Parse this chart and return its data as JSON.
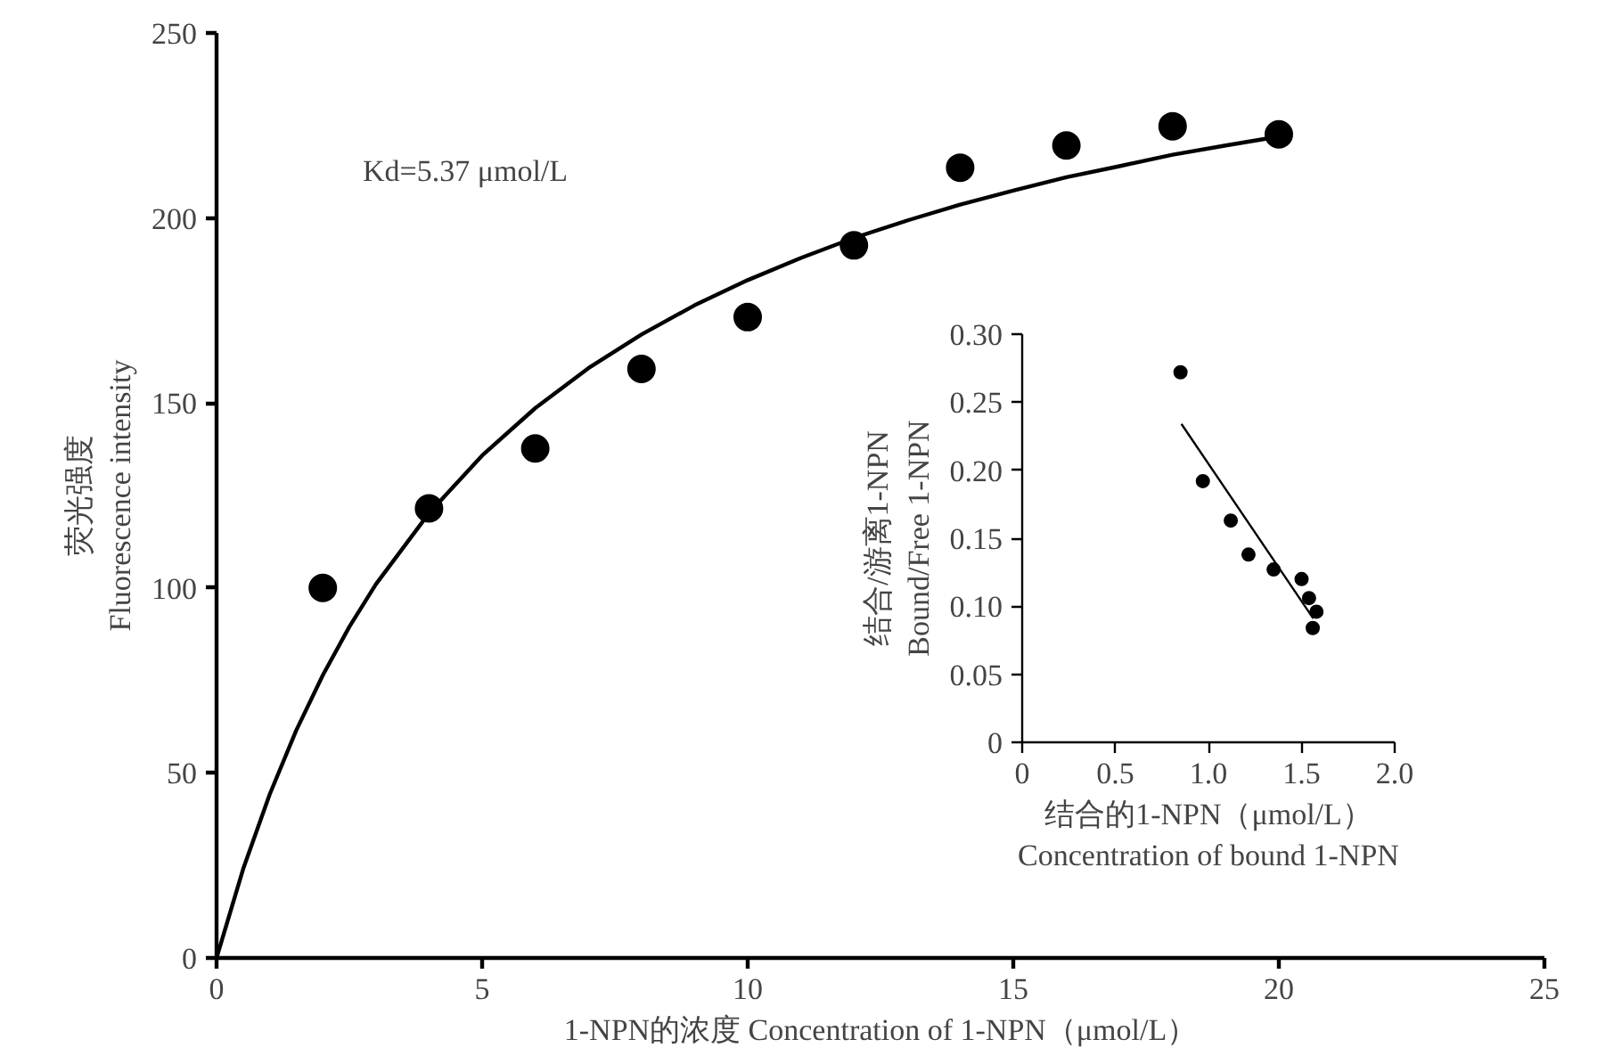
{
  "chart_data": [
    {
      "type": "scatter",
      "xlabel": "1-NPN的浓度 Concentration of 1-NPN（μmol/L）",
      "ylabel": "荧光强度\nFluorescence intensity",
      "annotations": [
        "Kd=5.37 μmol/L"
      ],
      "xlim": [
        0,
        25
      ],
      "xticks": [
        0,
        5,
        10,
        15,
        20,
        25
      ],
      "ylim": [
        0,
        250
      ],
      "yticks": [
        0,
        50,
        100,
        150,
        200,
        250
      ],
      "grid": false,
      "series": [
        {
          "marker": "circle",
          "color": "#000000",
          "x": [
            2,
            4,
            6,
            8,
            10,
            12,
            14,
            16,
            18,
            20
          ],
          "values": [
            100,
            121.5,
            137.7,
            159.2,
            173.2,
            192.6,
            213.6,
            219.6,
            224.8,
            222.6
          ]
        },
        {
          "type": "line",
          "color": "#000000",
          "x": [
            0,
            0.5,
            1,
            1.5,
            2,
            2.5,
            3,
            4,
            5,
            6,
            7,
            8,
            9,
            10,
            11,
            12,
            13,
            14,
            15,
            16,
            17,
            18,
            19,
            20
          ],
          "values": [
            0,
            24.0,
            44.2,
            61.5,
            76.4,
            89.5,
            101.0,
            120.2,
            135.8,
            148.6,
            159.4,
            168.5,
            176.4,
            183.2,
            189.2,
            194.6,
            199.3,
            203.6,
            207.4,
            211.0,
            214.0,
            217.1,
            219.6,
            222.0
          ]
        }
      ]
    },
    {
      "type": "scatter",
      "xlabel": "结合的1-NPN（μmol/L）\nConcentration of bound 1-NPN",
      "ylabel": "结合/游离1-NPN\nBound/Free 1-NPN",
      "xlim": [
        0,
        2
      ],
      "xticks": [
        0,
        0.5,
        {
          "value": 1,
          "label": "1.0"
        },
        1.5,
        {
          "value": 2,
          "label": "2.0"
        }
      ],
      "ylim": [
        0,
        0.3
      ],
      "yticks": [
        0,
        0.05,
        {
          "value": 0.1,
          "label": "0.10"
        },
        0.15,
        {
          "value": 0.2,
          "label": "0.20"
        },
        0.25,
        {
          "value": 0.3,
          "label": "0.30"
        }
      ],
      "grid": false,
      "series": [
        {
          "marker": "circle",
          "color": "#000000",
          "x": [
            0.85,
            0.97,
            1.12,
            1.215,
            1.35,
            1.5,
            1.54,
            1.58,
            1.56
          ],
          "values": [
            0.272,
            0.192,
            0.163,
            0.138,
            0.127,
            0.12,
            0.106,
            0.096,
            0.084
          ]
        },
        {
          "type": "line",
          "color": "#000000",
          "x": [
            0.855,
            1.563
          ],
          "values": [
            0.234,
            0.091
          ]
        }
      ]
    }
  ]
}
